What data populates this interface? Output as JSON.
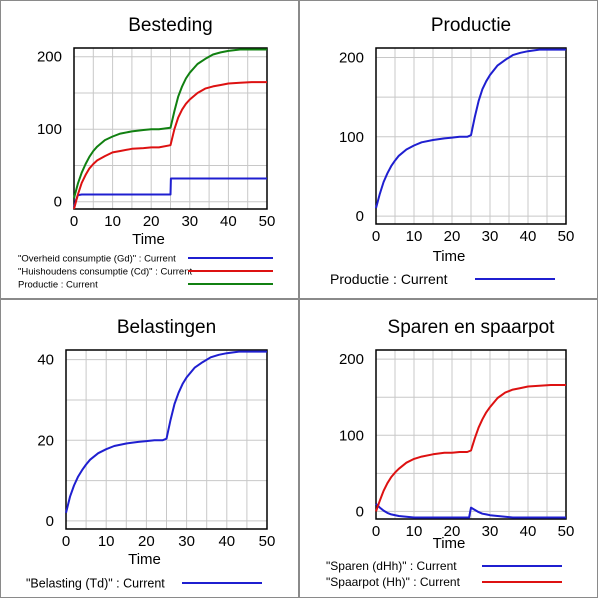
{
  "chart_data": [
    {
      "type": "line",
      "title": "Besteding",
      "xlabel": "Time",
      "ylabel": "",
      "xlim": [
        0,
        50
      ],
      "ylim": [
        -10,
        212
      ],
      "grid": true,
      "legend_placement": "bottom",
      "xticks": [
        "0",
        "10",
        "20",
        "30",
        "40",
        "50"
      ],
      "yticks": [
        "0",
        "100",
        "200"
      ],
      "series": [
        {
          "name": "\"Overheid consumptie (Gd)\" : Current",
          "color": "#1f1fd0",
          "x": [
            0,
            0.5,
            1,
            2,
            3,
            5,
            10,
            15,
            20,
            24.9,
            25,
            25.1,
            30,
            40,
            50
          ],
          "y": [
            -8,
            2,
            9,
            10,
            10,
            10,
            10,
            10,
            10,
            10,
            10,
            32,
            32,
            32,
            32
          ]
        },
        {
          "name": "\"Huishoudens consumptie (Cd)\" : Current",
          "color": "#dd1111",
          "x": [
            0,
            1,
            2,
            3,
            4,
            5,
            6,
            8,
            10,
            12,
            15,
            18,
            20,
            22,
            25,
            26,
            27,
            28,
            29,
            30,
            32,
            34,
            36,
            38,
            40,
            43,
            46,
            50
          ],
          "y": [
            -10,
            10,
            26,
            37,
            46,
            52,
            57,
            63,
            68,
            70,
            73,
            74,
            75,
            75,
            78,
            100,
            116,
            127,
            135,
            141,
            150,
            156,
            159,
            161,
            163,
            164,
            165,
            165
          ]
        },
        {
          "name": "Productie : Current",
          "color": "#118011",
          "x": [
            0,
            1,
            2,
            3,
            4,
            5,
            6,
            8,
            10,
            12,
            15,
            18,
            20,
            22,
            25,
            26,
            27,
            28,
            29,
            30,
            32,
            34,
            36,
            38,
            40,
            43,
            46,
            50
          ],
          "y": [
            5,
            25,
            40,
            52,
            62,
            70,
            76,
            85,
            90,
            94,
            97,
            99,
            100,
            100,
            102,
            125,
            145,
            159,
            170,
            178,
            190,
            197,
            203,
            206,
            208,
            210,
            210,
            210
          ]
        }
      ]
    },
    {
      "type": "line",
      "title": "Productie",
      "xlabel": "Time",
      "ylabel": "",
      "xlim": [
        0,
        50
      ],
      "ylim": [
        -10,
        212
      ],
      "grid": true,
      "legend_placement": "bottom",
      "xticks": [
        "0",
        "10",
        "20",
        "30",
        "40",
        "50"
      ],
      "yticks": [
        "0",
        "100",
        "200"
      ],
      "series": [
        {
          "name": "Productie : Current",
          "color": "#1f1fd0",
          "x": [
            0,
            1,
            2,
            3,
            4,
            5,
            6,
            8,
            10,
            12,
            15,
            18,
            20,
            22,
            24,
            25,
            26,
            27,
            28,
            29,
            30,
            32,
            34,
            36,
            38,
            40,
            43,
            46,
            50
          ],
          "y": [
            10,
            28,
            43,
            54,
            63,
            70,
            76,
            84,
            89,
            93,
            96,
            98,
            99,
            100,
            100,
            102,
            125,
            145,
            160,
            170,
            178,
            190,
            197,
            203,
            206,
            208,
            210,
            210,
            210
          ]
        }
      ]
    },
    {
      "type": "line",
      "title": "Belastingen",
      "xlabel": "Time",
      "ylabel": "",
      "xlim": [
        0,
        50
      ],
      "ylim": [
        -2,
        42.4
      ],
      "grid": true,
      "legend_placement": "bottom",
      "xticks": [
        "0",
        "10",
        "20",
        "30",
        "40",
        "50"
      ],
      "yticks": [
        "0",
        "20",
        "40"
      ],
      "series": [
        {
          "name": "\"Belasting (Td)\" : Current",
          "color": "#1f1fd0",
          "x": [
            0,
            1,
            2,
            3,
            4,
            5,
            6,
            8,
            10,
            12,
            15,
            18,
            20,
            22,
            24,
            25,
            26,
            27,
            28,
            29,
            30,
            32,
            34,
            36,
            38,
            40,
            43,
            46,
            50
          ],
          "y": [
            2,
            6,
            8.8,
            11,
            12.6,
            14,
            15.2,
            16.8,
            17.8,
            18.6,
            19.2,
            19.6,
            19.8,
            20,
            20,
            20.4,
            25,
            29,
            31.8,
            34,
            35.6,
            38,
            39.4,
            40.6,
            41.2,
            41.6,
            42,
            42,
            42
          ]
        }
      ]
    },
    {
      "type": "line",
      "title": "Sparen en spaarpot",
      "xlabel": "Time",
      "ylabel": "",
      "xlim": [
        0,
        50
      ],
      "ylim": [
        -10,
        212
      ],
      "grid": true,
      "legend_placement": "bottom",
      "xticks": [
        "0",
        "10",
        "20",
        "30",
        "40",
        "50"
      ],
      "yticks": [
        "0",
        "100",
        "200"
      ],
      "series": [
        {
          "name": "\"Sparen (dHh)\" : Current",
          "color": "#1f1fd0",
          "x": [
            0,
            1,
            2,
            3,
            4,
            6,
            8,
            10,
            15,
            20,
            24.5,
            25,
            26,
            27,
            28,
            29,
            30,
            32,
            34,
            36,
            40,
            50
          ],
          "y": [
            10,
            5,
            1,
            -2,
            -4,
            -6,
            -7,
            -8,
            -8,
            -8,
            -8,
            5,
            2,
            -1,
            -3,
            -4,
            -5,
            -6,
            -7,
            -8,
            -8,
            -8
          ]
        },
        {
          "name": "\"Spaarpot (Hh)\" : Current",
          "color": "#dd1111",
          "x": [
            0,
            1,
            2,
            3,
            4,
            5,
            6,
            8,
            10,
            12,
            15,
            18,
            20,
            22,
            24,
            25,
            26,
            27,
            28,
            29,
            30,
            32,
            34,
            36,
            38,
            40,
            43,
            46,
            50
          ],
          "y": [
            0,
            14,
            27,
            37,
            45,
            51,
            56,
            64,
            69,
            72,
            75,
            77,
            77,
            78,
            78,
            80,
            96,
            110,
            121,
            130,
            137,
            149,
            156,
            160,
            162,
            164,
            165,
            166,
            166
          ]
        }
      ]
    }
  ]
}
